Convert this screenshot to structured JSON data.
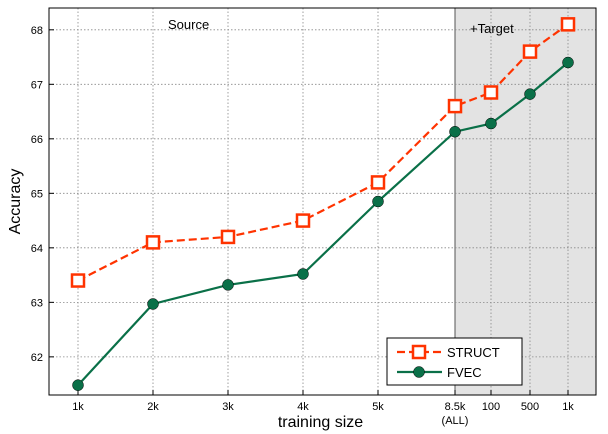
{
  "chart_data": {
    "type": "line",
    "x": [
      "1k",
      "2k",
      "3k",
      "4k",
      "5k",
      "8.5k",
      "100",
      "500",
      "1k"
    ],
    "x_sublabel": "(ALL)",
    "xlabel": "training size",
    "ylabel": "Accuracy",
    "ylim": [
      61.3,
      68.4
    ],
    "yticks": [
      62,
      63,
      64,
      65,
      66,
      67,
      68
    ],
    "grid": true,
    "legend_position": "bottom-right",
    "regions": [
      {
        "label": "Source",
        "from_index": 0,
        "to_index": 5
      },
      {
        "label": "+Target",
        "from_index": 5,
        "to_index": 8,
        "shaded": true
      }
    ],
    "series": [
      {
        "name": "STRUCT",
        "color": "#ff3300",
        "marker": "square-open",
        "dash": true,
        "values": [
          63.4,
          64.1,
          64.2,
          64.5,
          65.2,
          66.6,
          66.85,
          67.6,
          68.1
        ]
      },
      {
        "name": "FVEC",
        "color": "#0a7048",
        "marker": "circle-filled",
        "dash": false,
        "values": [
          61.48,
          62.97,
          63.32,
          63.52,
          64.85,
          66.13,
          66.28,
          66.82,
          67.4
        ]
      }
    ]
  }
}
